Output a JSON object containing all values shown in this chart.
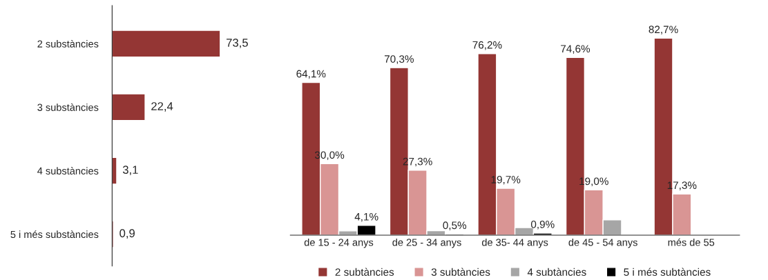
{
  "chart_data": [
    {
      "type": "bar",
      "orientation": "horizontal",
      "categories": [
        "2 substàncies",
        "3 substàncies",
        "4 substàncies",
        "5 i més substàncies"
      ],
      "values": [
        73.5,
        22.4,
        3.1,
        0.9
      ],
      "value_labels": [
        "73,5",
        "22,4",
        "3,1",
        "0,9"
      ],
      "color": "#943634",
      "tick_labels": "y",
      "grid": false
    },
    {
      "type": "bar",
      "categories": [
        "de 15 - 24 anys",
        "de 25 - 34 anys",
        "de 35- 44 anys",
        "de 45 - 54 anys",
        "més de 55"
      ],
      "series": [
        {
          "name": "2 subtàncies",
          "color": "#943634",
          "values": [
            64.1,
            70.3,
            76.2,
            74.6,
            82.7
          ],
          "value_labels": [
            "64,1%",
            "70,3%",
            "76,2%",
            "74,6%",
            "82,7%"
          ]
        },
        {
          "name": "3 subtàncies",
          "color": "#d99594",
          "values": [
            30.0,
            27.3,
            19.7,
            19.0,
            17.3
          ],
          "value_labels": [
            "30,0%",
            "27,3%",
            "19,7%",
            "19,0%",
            "17,3%"
          ]
        },
        {
          "name": "4 subtàncies",
          "color": "#a6a6a6",
          "values": [
            1.8,
            1.9,
            3.2,
            6.4,
            null
          ],
          "value_labels": [
            null,
            null,
            null,
            null,
            null
          ]
        },
        {
          "name": "5 i més subtàncies",
          "color": "#000000",
          "values": [
            4.1,
            0.5,
            0.9,
            null,
            null
          ],
          "value_labels": [
            "4,1%",
            "0,5%",
            "0,9%",
            null,
            null
          ]
        }
      ],
      "legend": "bottom",
      "tick_labels": "x",
      "grid": false
    }
  ]
}
